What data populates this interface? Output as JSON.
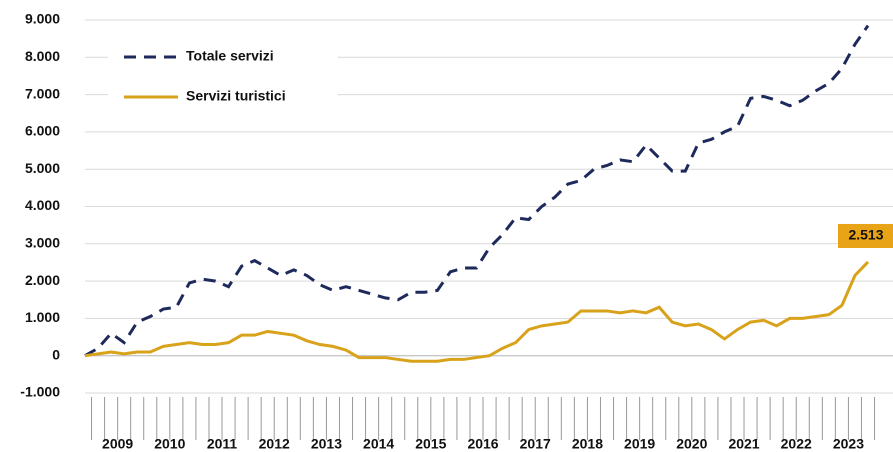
{
  "chart_data": {
    "type": "line",
    "categories": [
      null,
      null,
      null,
      null,
      null,
      null,
      null,
      null,
      null,
      null,
      null,
      null,
      null,
      null,
      null,
      null,
      null,
      null,
      null,
      null,
      null,
      null,
      null,
      null,
      null,
      null,
      null,
      null,
      null,
      null,
      null,
      null,
      null,
      null,
      null,
      null,
      null,
      null,
      null,
      null,
      null,
      null,
      null,
      null,
      null,
      null,
      null,
      null,
      null,
      null,
      null,
      null,
      null,
      null,
      null,
      null,
      null,
      null,
      null,
      null,
      null
    ],
    "year_labels": [
      "2009",
      "2010",
      "2011",
      "2012",
      "2013",
      "2014",
      "2015",
      "2016",
      "2017",
      "2018",
      "2019",
      "2020",
      "2021",
      "2022",
      "2023"
    ],
    "series": [
      {
        "name": "Totale servizi",
        "color": "#1f2a5c",
        "dashed": true,
        "values": [
          0,
          200,
          600,
          350,
          900,
          1050,
          1250,
          1300,
          1950,
          2050,
          2000,
          1850,
          2400,
          2550,
          2350,
          2150,
          2300,
          2150,
          1900,
          1750,
          1850,
          1750,
          1650,
          1550,
          1500,
          1700,
          1700,
          1750,
          2250,
          2350,
          2350,
          2900,
          3250,
          3700,
          3650,
          4000,
          4250,
          4600,
          4700,
          5000,
          5100,
          5250,
          5200,
          5650,
          5300,
          4950,
          4950,
          5700,
          5800,
          6000,
          6150,
          6900,
          6950,
          6850,
          6700,
          6850,
          7100,
          7300,
          7700,
          8350,
          8850
        ]
      },
      {
        "name": "Servizi turistici",
        "color": "#d9a21b",
        "dashed": false,
        "values": [
          0,
          50,
          100,
          50,
          100,
          100,
          250,
          300,
          350,
          300,
          300,
          350,
          550,
          550,
          650,
          600,
          550,
          400,
          300,
          250,
          150,
          -50,
          -50,
          -50,
          -100,
          -150,
          -150,
          -150,
          -100,
          -100,
          -50,
          0,
          200,
          350,
          700,
          800,
          850,
          900,
          1200,
          1200,
          1200,
          1150,
          1200,
          1150,
          1300,
          900,
          800,
          850,
          700,
          450,
          700,
          900,
          950,
          800,
          1000,
          1000,
          1050,
          1100,
          1350,
          2150,
          2513
        ],
        "value_labels": [
          null,
          null,
          null,
          null,
          null,
          null,
          null,
          null,
          null,
          null,
          null,
          null,
          null,
          null,
          null,
          null,
          null,
          null,
          null,
          null,
          null,
          null,
          null,
          null,
          null,
          null,
          null,
          null,
          null,
          null,
          null,
          null,
          null,
          null,
          null,
          null,
          null,
          null,
          null,
          null,
          null,
          null,
          null,
          null,
          null,
          null,
          null,
          null,
          null,
          null,
          null,
          null,
          null,
          null,
          null,
          null,
          null,
          null,
          null,
          null,
          "2.513"
        ]
      }
    ],
    "ylim": [
      -1000,
      9000
    ],
    "yticks": [
      {
        "value": -1000,
        "label": "-1.000"
      },
      0,
      {
        "value": 1000,
        "label": "1.000"
      },
      {
        "value": 2000,
        "label": "2.000"
      },
      {
        "value": 3000,
        "label": "3.000"
      },
      {
        "value": 4000,
        "label": "4.000"
      },
      {
        "value": 5000,
        "label": "5.000"
      },
      {
        "value": 6000,
        "label": "6.000"
      },
      {
        "value": 7000,
        "label": "7.000"
      },
      {
        "value": 8000,
        "label": "8.000"
      },
      {
        "value": 9000,
        "label": "9.000"
      }
    ],
    "grid": true,
    "legend": "top-left"
  }
}
